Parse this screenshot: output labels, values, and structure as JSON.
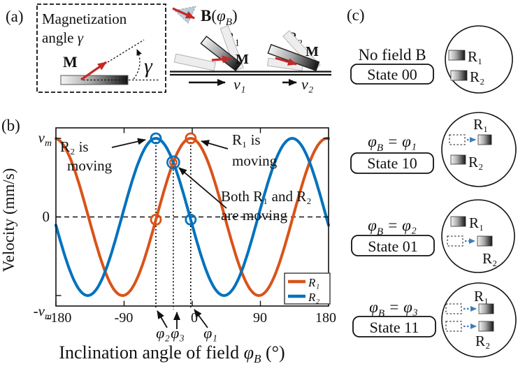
{
  "colors": {
    "r1_orange": "#D95319",
    "r2_blue": "#0072BD",
    "magnet_red": "#C62828",
    "arrow_blue": "#3E7DB6",
    "triangle_fill": "#B9CDDA"
  },
  "panel_a": {
    "tag": "(a)",
    "title_line1": "Magnetization",
    "title_line2_pre": "angle ",
    "title_line2_gamma": "γ",
    "m_label": "M",
    "gamma_label": "γ"
  },
  "panel_top": {
    "field_bold": "B",
    "field_open": "(",
    "field_phi": "φ",
    "field_phi_sub": "B",
    "field_close": ")",
    "r1_label": "R₁",
    "r2_label": "R₂",
    "m1_label": "M",
    "m2_label": "M",
    "v1_label": "v₁",
    "v2_label": "v₂"
  },
  "panel_b": {
    "tag": "(b)",
    "chart_data": {
      "type": "line",
      "ylabel": "Velocity (mm/s)",
      "xlabel_parts": {
        "pre": "Inclination angle of field ",
        "phi": "φ",
        "phi_sub": "B",
        "post": " (°)"
      },
      "xlim": [
        -180,
        180
      ],
      "ylim_vm": [
        -1.15,
        1.15
      ],
      "x_ticks": [
        -180,
        -90,
        0,
        90,
        180
      ],
      "x_tick_labels": [
        "-180",
        "-90",
        "0",
        "90",
        "180"
      ],
      "y_tick_parts": [
        {
          "base": "v",
          "sub": "m",
          "value": 1
        },
        {
          "base": "0",
          "sub": "",
          "value": 0
        },
        {
          "base": "-v",
          "sub": "m",
          "value": -1
        }
      ],
      "zero_line": "dashed",
      "series": [
        {
          "name": "R₁",
          "color": "#D95319",
          "phase_deg": -2,
          "amplitude": "vm"
        },
        {
          "name": "R₂",
          "color": "#0072BD",
          "phase_deg": -48,
          "amplitude": "vm"
        }
      ],
      "key_angles": [
        {
          "label": "φ₂",
          "deg": -48
        },
        {
          "label": "φ₃",
          "deg": -25
        },
        {
          "label": "φ₁",
          "deg": -2
        }
      ],
      "markers": [
        {
          "deg": -48,
          "series": 1
        },
        {
          "deg": -48,
          "series": 0
        },
        {
          "deg": -2,
          "series": 0
        },
        {
          "deg": -2,
          "series": 1
        },
        {
          "deg": -25,
          "series": "both"
        }
      ],
      "annotations": [
        {
          "line1": "R₂ is",
          "line2": "moving"
        },
        {
          "line1": "R₁ is",
          "line2": "moving"
        },
        {
          "line1": "Both R₁ and R₂",
          "line2": "are moving"
        }
      ],
      "legend_position": "lower right"
    }
  },
  "panel_c": {
    "tag": "(c)",
    "states": [
      {
        "label_plain": "No field B",
        "state_label": "State 00",
        "r1": "R₁",
        "r2": "R₂"
      },
      {
        "label_phi": "φ",
        "label_phi_sub": "B",
        "label_rest": " = φ₁",
        "state_label": "State 10",
        "r1": "R₁",
        "r2": "R₂"
      },
      {
        "label_phi": "φ",
        "label_phi_sub": "B",
        "label_rest": " = φ₂",
        "state_label": "State 01",
        "r1": "R₁",
        "r2": "R₂"
      },
      {
        "label_phi": "φ",
        "label_phi_sub": "B",
        "label_rest": " = φ₃",
        "state_label": "State 11",
        "r1": "R₁",
        "r2": "R₂"
      }
    ]
  }
}
